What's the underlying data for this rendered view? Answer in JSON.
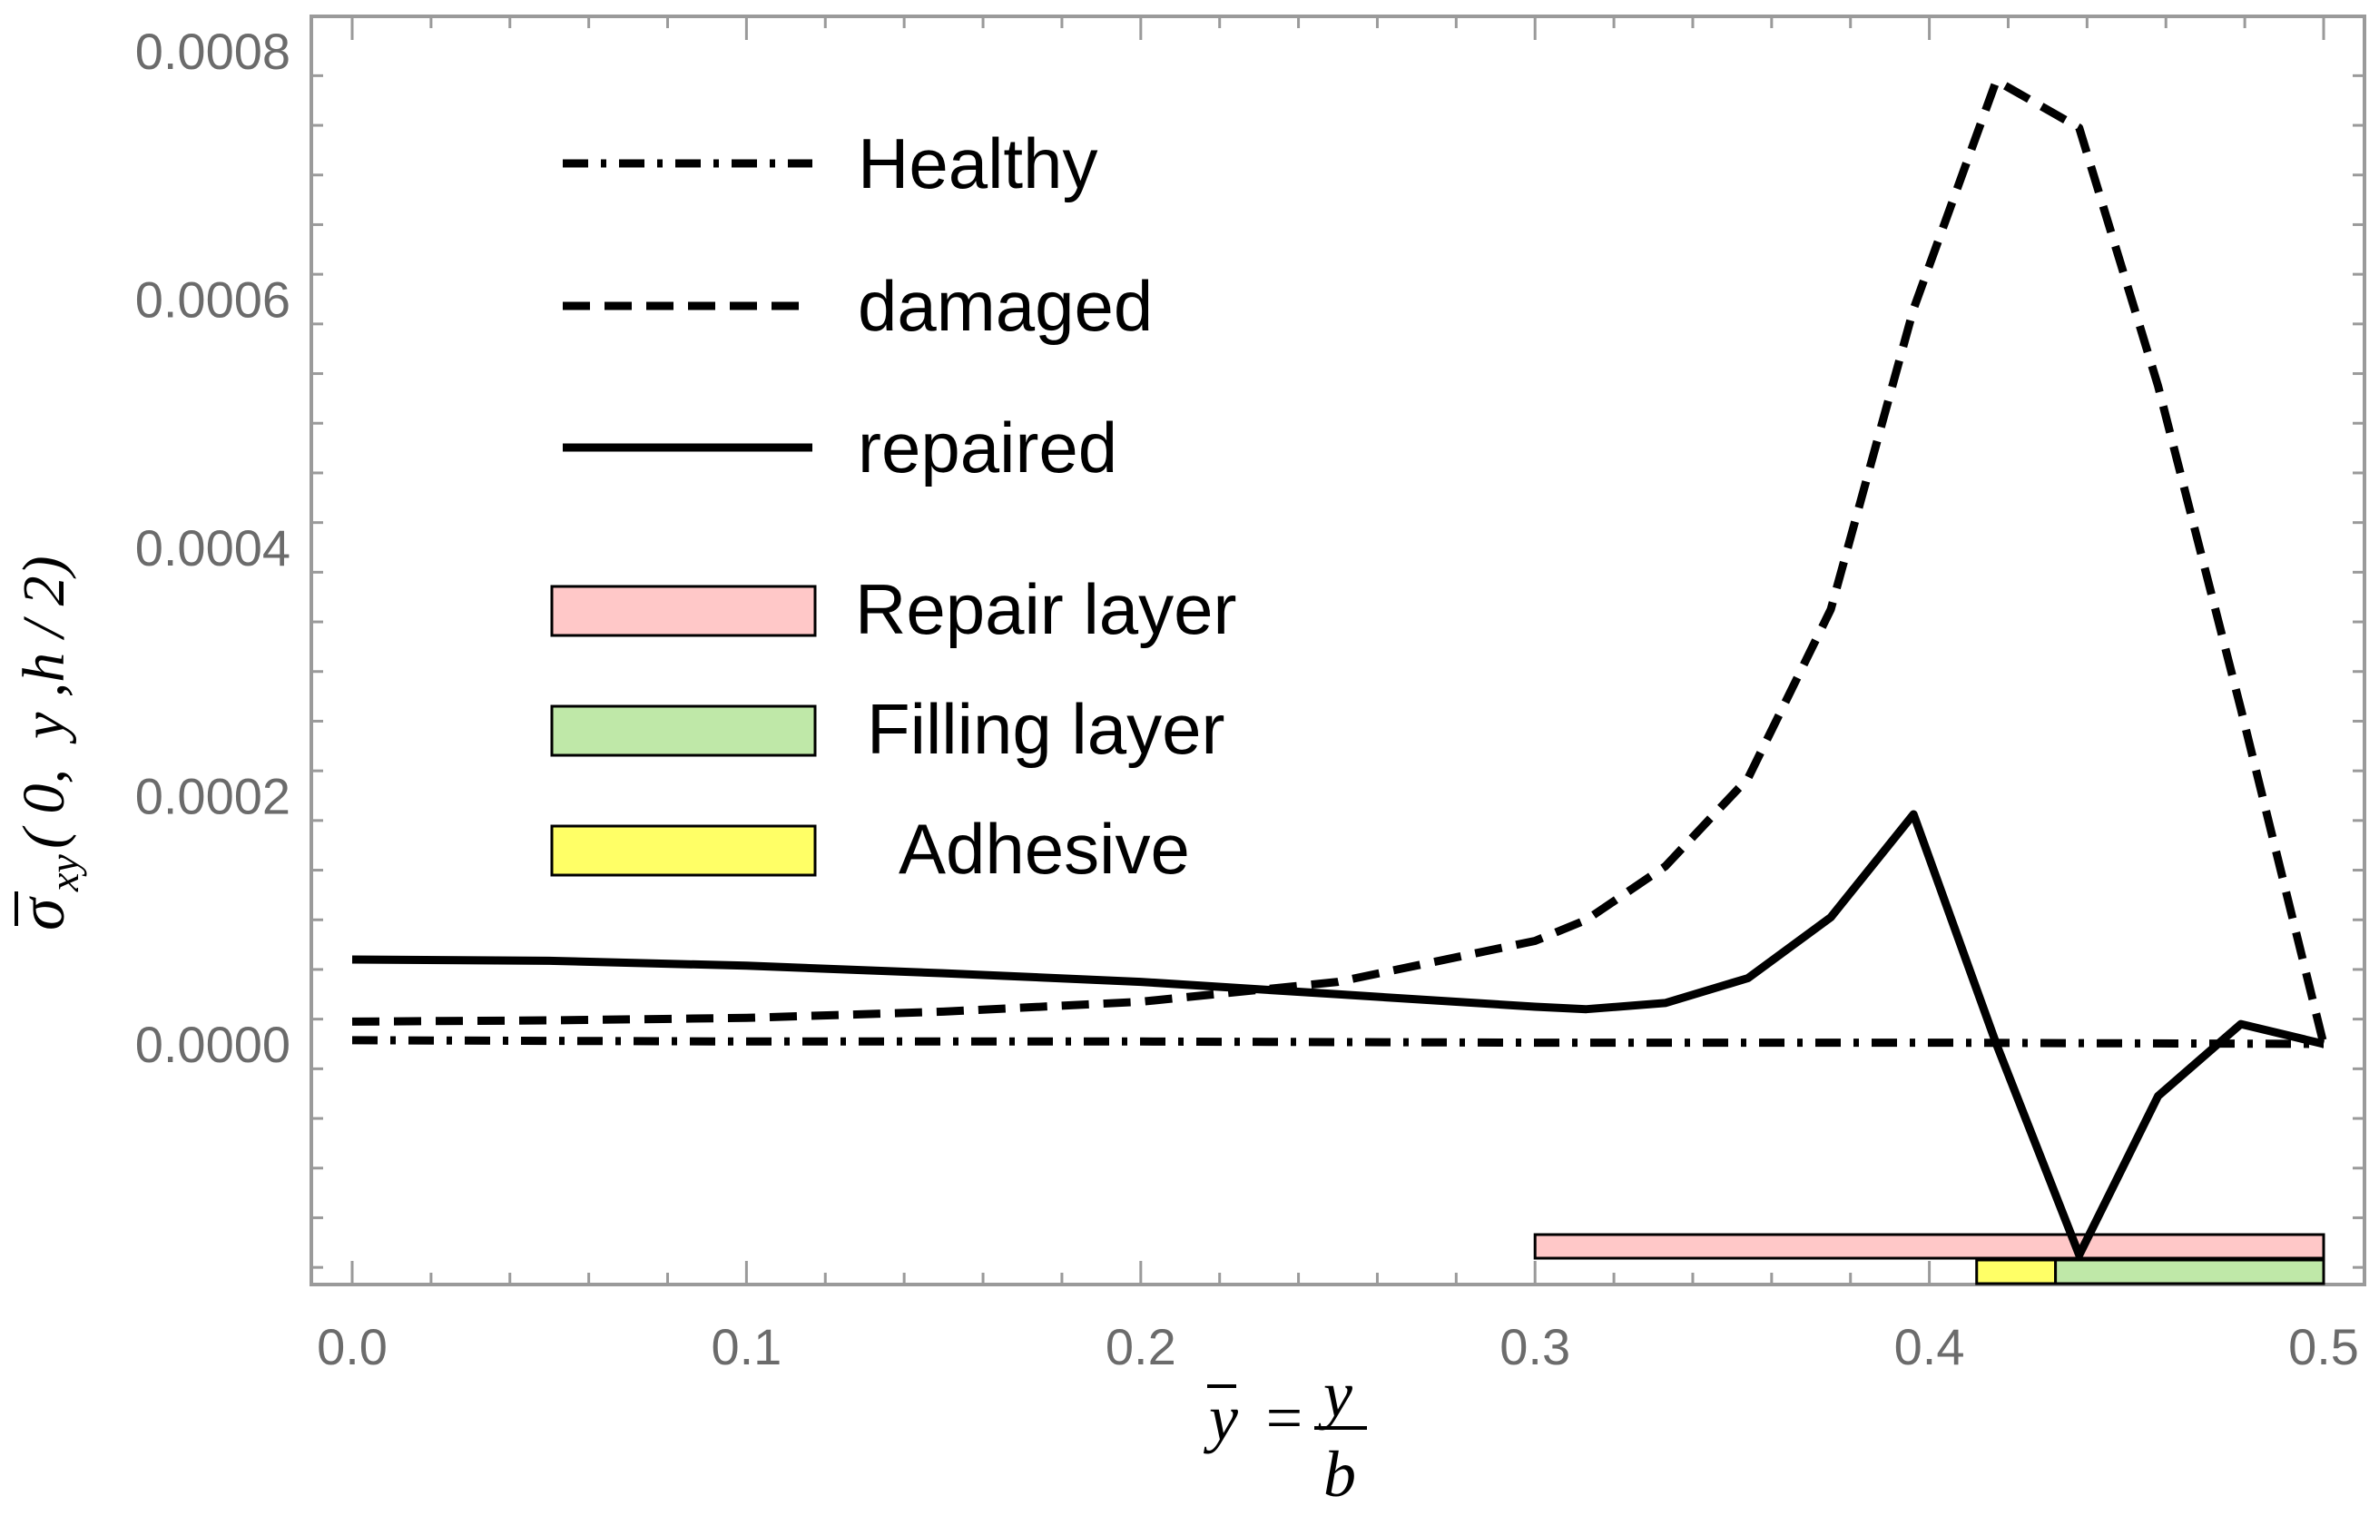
{
  "chart_data": {
    "type": "line",
    "title": "",
    "xlabel": {
      "lhs": "y",
      "equals": "=",
      "numerator": "y",
      "denominator": "b"
    },
    "ylabel": {
      "sigma": "σ",
      "subscript": "xy",
      "args": "( 0,  y ,h / 2)"
    },
    "xlim": [
      0,
      0.5
    ],
    "ylim": [
      -0.000192,
      0.00082
    ],
    "x_ticks": [
      {
        "value": 0.0,
        "label": "0.0"
      },
      {
        "value": 0.1,
        "label": "0.1"
      },
      {
        "value": 0.2,
        "label": "0.2"
      },
      {
        "value": 0.3,
        "label": "0.3"
      },
      {
        "value": 0.4,
        "label": "0.4"
      },
      {
        "value": 0.5,
        "label": "0.5"
      }
    ],
    "y_ticks": [
      {
        "value": 0.0,
        "label": "0.0000"
      },
      {
        "value": 0.0002,
        "label": "0.0002"
      },
      {
        "value": 0.0004,
        "label": "0.0004"
      },
      {
        "value": 0.0006,
        "label": "0.0006"
      },
      {
        "value": 0.0008,
        "label": "0.0008"
      }
    ],
    "series": [
      {
        "name": "Healthy",
        "style": "dashdot",
        "x": [
          0.0,
          0.1,
          0.2,
          0.3,
          0.4,
          0.5
        ],
        "y": [
          3e-06,
          2e-06,
          2e-06,
          1e-06,
          1e-06,
          0.0
        ]
      },
      {
        "name": "damaged",
        "style": "dashed",
        "x": [
          0.0,
          0.05,
          0.1,
          0.15,
          0.2,
          0.25,
          0.3,
          0.313,
          0.333,
          0.354,
          0.375,
          0.396,
          0.417,
          0.438,
          0.458,
          0.479,
          0.5
        ],
        "y": [
          1.8e-05,
          1.9e-05,
          2.1e-05,
          2.6e-05,
          3.4e-05,
          5e-05,
          8.3e-05,
          0.0001,
          0.000143,
          0.000214,
          0.00035,
          0.000592,
          0.000776,
          0.000738,
          0.00053,
          0.00027,
          0.0
        ]
      },
      {
        "name": "repaired",
        "style": "solid",
        "x": [
          0.0,
          0.05,
          0.1,
          0.15,
          0.2,
          0.25,
          0.3,
          0.313,
          0.333,
          0.354,
          0.375,
          0.396,
          0.417,
          0.438,
          0.458,
          0.479,
          0.5
        ],
        "y": [
          6.8e-05,
          6.7e-05,
          6.3e-05,
          5.7e-05,
          5e-05,
          4e-05,
          3e-05,
          2.8e-05,
          3.3e-05,
          5.3e-05,
          0.000102,
          0.000185,
          0.0,
          -0.00017,
          -4.2e-05,
          1.6e-05,
          0.0
        ]
      }
    ],
    "layers": [
      {
        "name": "Repair layer",
        "color": "#ffc8c8",
        "x_start": 0.3,
        "x_end": 0.5,
        "row": "top"
      },
      {
        "name": "Adhesive",
        "color": "#ffff66",
        "x_start": 0.412,
        "x_end": 0.432,
        "row": "bottom"
      },
      {
        "name": "Filling layer",
        "color": "#bfe8a8",
        "x_start": 0.432,
        "x_end": 0.5,
        "row": "bottom"
      }
    ],
    "legend": {
      "placement": "top-left",
      "lines": [
        {
          "label": "Healthy",
          "style": "dashdot"
        },
        {
          "label": "damaged",
          "style": "dashed"
        },
        {
          "label": "repaired",
          "style": "solid"
        }
      ],
      "patches": [
        {
          "label": "Repair layer",
          "color": "#ffc8c8"
        },
        {
          "label": "Filling layer",
          "color": "#bfe8a8"
        },
        {
          "label": "Adhesive",
          "color": "#ffff66"
        }
      ]
    }
  }
}
